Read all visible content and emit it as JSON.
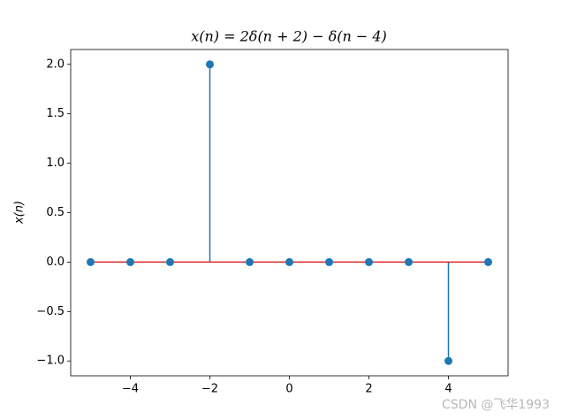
{
  "chart_data": {
    "type": "stem",
    "title": "x(n) = 2δ(n + 2) − δ(n − 4)",
    "y_label": "x(n)",
    "x": [
      -5,
      -4,
      -3,
      -2,
      -1,
      0,
      1,
      2,
      3,
      4,
      5
    ],
    "values": [
      0,
      0,
      0,
      2,
      0,
      0,
      0,
      0,
      0,
      -1,
      0
    ],
    "color": "#1f77b4",
    "baseline_color": "#d62728",
    "xlim": [
      -5.5,
      5.5
    ],
    "xticks": [
      {
        "value": -4,
        "label": "−4"
      },
      {
        "value": -2,
        "label": "−2"
      },
      0,
      2,
      4
    ],
    "ylim": [
      -1.15,
      2.15
    ],
    "yticks": [
      {
        "value": -1,
        "label": "−1.0"
      },
      {
        "value": -0.5,
        "label": "−0.5"
      },
      {
        "value": 0,
        "label": "0.0"
      },
      {
        "value": 0.5,
        "label": "0.5"
      },
      {
        "value": 1,
        "label": "1.0"
      },
      {
        "value": 1.5,
        "label": "1.5"
      },
      {
        "value": 2,
        "label": "2.0"
      }
    ],
    "grid": false,
    "watermark": "CSDN @飞华1993"
  }
}
